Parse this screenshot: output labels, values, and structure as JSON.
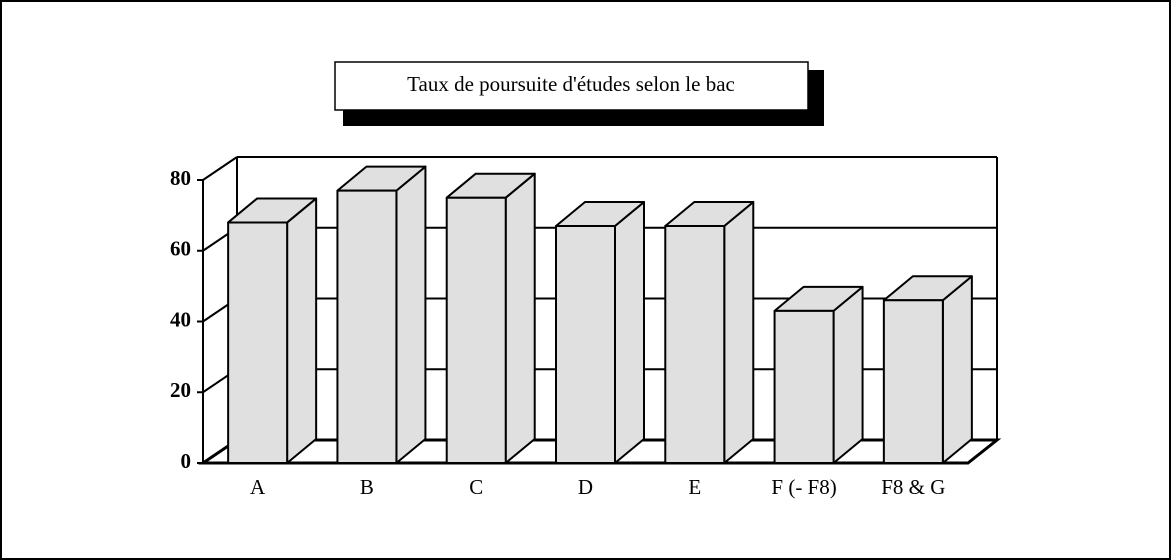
{
  "chart_data": {
    "type": "bar3d",
    "title": "Taux de poursuite d'études selon le bac",
    "categories": [
      "A",
      "B",
      "C",
      "D",
      "E",
      "F (- F8)",
      "F8 & G"
    ],
    "values": [
      68,
      77,
      75,
      67,
      67,
      43,
      46
    ],
    "color": "#e0e0e0",
    "ylim": [
      0,
      80
    ],
    "yticks": [
      0,
      20,
      40,
      60,
      80
    ],
    "grid": true
  }
}
